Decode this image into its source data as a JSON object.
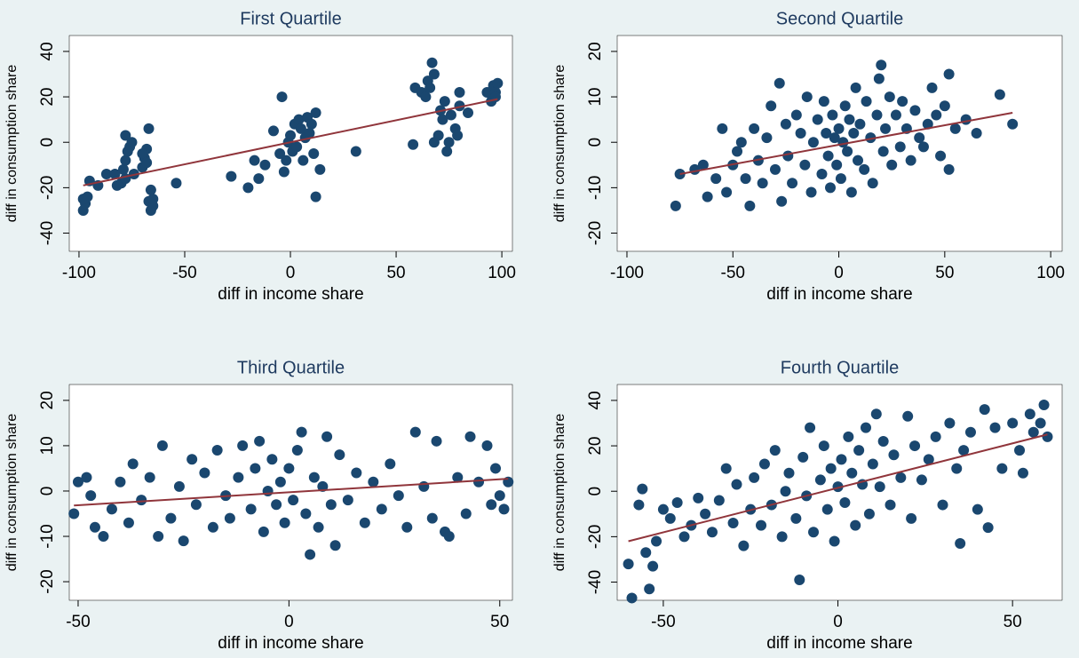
{
  "chart_data": [
    {
      "type": "scatter",
      "title": "First Quartile",
      "x_label": "diff in income share",
      "y_label": "diff in consumption share",
      "xlim": [
        -104.6,
        105
      ],
      "ylim": [
        -48,
        47
      ],
      "xticks": [
        -100,
        -50,
        0,
        50,
        100
      ],
      "yticks": [
        -40,
        -20,
        0,
        20,
        40
      ],
      "points": {
        "color": "#1a476f",
        "x": [
          -98,
          -97,
          -96,
          -98,
          -95,
          -91,
          -87,
          -83,
          -80,
          -78,
          -79,
          -78,
          -77,
          -76,
          -78,
          -75,
          -74,
          -82,
          -70,
          -69,
          -68,
          -70,
          -67,
          -68,
          -67,
          -66,
          -65,
          -66,
          -65,
          -54,
          -28,
          -20,
          -17,
          -15,
          -12,
          -8,
          -5,
          -4,
          -3,
          -2,
          -1,
          0,
          1,
          2,
          3,
          4,
          5,
          6,
          7,
          8,
          9,
          10,
          11,
          12,
          12,
          14,
          31,
          58,
          59,
          62,
          64,
          65,
          66,
          67,
          68,
          68,
          70,
          71,
          72,
          73,
          74,
          75,
          76,
          78,
          79,
          80,
          80,
          84,
          93,
          95,
          96,
          97,
          98,
          97
        ],
        "y": [
          -30,
          -27,
          -24,
          -25,
          -17,
          -19,
          -14,
          -14,
          -18,
          -16,
          -12,
          -8,
          -4,
          -2,
          3,
          0,
          -14,
          -19,
          -11,
          -7,
          -3,
          -5,
          6,
          -9,
          -26,
          -30,
          -28,
          -21,
          -25,
          -18,
          -15,
          -20,
          -8,
          -16,
          -10,
          5,
          -5,
          20,
          -13,
          -8,
          0,
          3,
          -4,
          8,
          -2,
          10,
          6,
          -8,
          2,
          11,
          4,
          8,
          -5,
          13,
          -24,
          -12,
          -4,
          -1,
          24,
          22,
          20,
          27,
          24,
          35,
          30,
          0,
          3,
          14,
          10,
          18,
          -4,
          0,
          12,
          6,
          3,
          22,
          16,
          13,
          22,
          18,
          25,
          22,
          26,
          20
        ]
      },
      "fit": {
        "color": "#90353b",
        "x": [
          -98,
          98
        ],
        "y": [
          -19,
          19
        ]
      }
    },
    {
      "type": "scatter",
      "title": "Second Quartile",
      "x_label": "diff in income share",
      "y_label": "diff in consumption share",
      "xlim": [
        -104.6,
        105.4
      ],
      "ylim": [
        -24,
        23.5
      ],
      "xticks": [
        -100,
        -50,
        0,
        50,
        100
      ],
      "yticks": [
        -20,
        -10,
        0,
        10,
        20
      ],
      "points": {
        "color": "#1a476f",
        "x": [
          -77,
          -75,
          -68,
          -64,
          -62,
          -58,
          -55,
          -53,
          -50,
          -48,
          -46,
          -44,
          -42,
          -40,
          -38,
          -36,
          -34,
          -32,
          -30,
          -28,
          -27,
          -25,
          -24,
          -22,
          -20,
          -18,
          -16,
          -15,
          -13,
          -12,
          -10,
          -8,
          -7,
          -6,
          -5,
          -4,
          -3,
          -2,
          -1,
          0,
          1,
          2,
          3,
          4,
          5,
          6,
          7,
          8,
          9,
          10,
          12,
          13,
          15,
          16,
          18,
          19,
          20,
          21,
          22,
          24,
          25,
          27,
          29,
          30,
          32,
          34,
          36,
          38,
          40,
          42,
          44,
          46,
          48,
          50,
          52,
          52,
          55,
          60,
          65,
          76,
          82
        ],
        "y": [
          -14,
          -7,
          -6,
          -5,
          -12,
          -8,
          3,
          -11,
          -5,
          -2,
          0,
          -8,
          -14,
          3,
          -4,
          -9,
          1,
          8,
          -6,
          13,
          -13,
          4,
          -3,
          -9,
          6,
          2,
          -5,
          10,
          -11,
          0,
          5,
          -7,
          9,
          2,
          -3,
          -10,
          6,
          1,
          -5,
          3,
          -8,
          0,
          8,
          -2,
          5,
          -11,
          2,
          12,
          -4,
          4,
          -6,
          9,
          1,
          -9,
          6,
          14,
          17,
          -2,
          3,
          10,
          -5,
          6,
          -1,
          9,
          3,
          -4,
          7,
          1,
          -1,
          4,
          12,
          6,
          -3,
          8,
          15,
          -6,
          3,
          5,
          2,
          10.5,
          4
        ]
      },
      "fit": {
        "color": "#90353b",
        "x": [
          -75,
          82
        ],
        "y": [
          -7,
          6.5
        ]
      }
    },
    {
      "type": "scatter",
      "title": "Third Quartile",
      "x_label": "diff in income share",
      "y_label": "diff in consumption share",
      "xlim": [
        -52.1,
        53
      ],
      "ylim": [
        -24.1,
        23.5
      ],
      "xticks": [
        -50,
        0,
        50
      ],
      "yticks": [
        -20,
        -10,
        0,
        10,
        20
      ],
      "points": {
        "color": "#1a476f",
        "x": [
          -50,
          -51,
          -48,
          -47,
          -46,
          -44,
          -42,
          -40,
          -38,
          -37,
          -35,
          -33,
          -31,
          -30,
          -28,
          -26,
          -25,
          -23,
          -22,
          -20,
          -18,
          -17,
          -15,
          -14,
          -12,
          -11,
          -9,
          -8,
          -7,
          -6,
          -5,
          -4,
          -3,
          -2,
          -1,
          0,
          1,
          2,
          3,
          4,
          5,
          6,
          7,
          8,
          9,
          10,
          11,
          12,
          14,
          16,
          18,
          20,
          22,
          24,
          26,
          28,
          30,
          32,
          34,
          35,
          37,
          38,
          40,
          42,
          43,
          45,
          47,
          48,
          49,
          50,
          51,
          52
        ],
        "y": [
          2,
          -5,
          3,
          -1,
          -8,
          -10,
          -4,
          2,
          -7,
          6,
          -2,
          3,
          -10,
          10,
          -6,
          1,
          -11,
          7,
          -3,
          4,
          -8,
          9,
          -1,
          -6,
          3,
          10,
          -4,
          5,
          11,
          -9,
          0,
          7,
          -3,
          2,
          -7,
          5,
          -2,
          9,
          13,
          -5,
          -14,
          3,
          -8,
          1,
          12,
          -3,
          -12,
          8,
          -2,
          4,
          -7,
          2,
          -4,
          6,
          -1,
          -8,
          13,
          1,
          -6,
          11,
          -9,
          -10,
          3,
          -5,
          12,
          2,
          10,
          -3,
          5,
          -1,
          -4,
          2
        ]
      },
      "fit": {
        "color": "#90353b",
        "x": [
          -51,
          52
        ],
        "y": [
          -3.2,
          2.7
        ]
      }
    },
    {
      "type": "scatter",
      "title": "Fourth Quartile",
      "x_label": "diff in income share",
      "y_label": "diff in consumption share",
      "xlim": [
        -63.2,
        64.2
      ],
      "ylim": [
        -48,
        47
      ],
      "xticks": [
        -50,
        0,
        50
      ],
      "yticks": [
        -40,
        -20,
        0,
        20,
        40
      ],
      "points": {
        "color": "#1a476f",
        "x": [
          -60,
          -59,
          -57,
          -56,
          -55,
          -54,
          -53,
          -52,
          -50,
          -48,
          -46,
          -44,
          -42,
          -40,
          -38,
          -36,
          -34,
          -32,
          -30,
          -29,
          -27,
          -25,
          -24,
          -22,
          -21,
          -19,
          -18,
          -16,
          -15,
          -14,
          -12,
          -11,
          -10,
          -9,
          -8,
          -7,
          -5,
          -4,
          -3,
          -2,
          -1,
          0,
          1,
          2,
          3,
          4,
          5,
          6,
          7,
          8,
          9,
          10,
          11,
          12,
          13,
          15,
          16,
          18,
          20,
          21,
          22,
          24,
          26,
          28,
          30,
          32,
          34,
          35,
          36,
          38,
          40,
          42,
          43,
          45,
          47,
          50,
          52,
          53,
          55,
          56,
          58,
          59,
          60
        ],
        "y": [
          -32,
          -47,
          -6,
          1,
          -27,
          -43,
          -33,
          -22,
          -8,
          -12,
          -5,
          -20,
          -15,
          -3,
          -10,
          -18,
          -4,
          10,
          -14,
          3,
          -24,
          -8,
          6,
          -15,
          12,
          -6,
          18,
          -20,
          0,
          8,
          -12,
          -39,
          15,
          -2,
          28,
          -18,
          5,
          20,
          -8,
          10,
          -22,
          2,
          14,
          -5,
          24,
          8,
          -15,
          18,
          3,
          28,
          -10,
          12,
          34,
          2,
          22,
          -6,
          16,
          6,
          33,
          -12,
          20,
          5,
          14,
          24,
          -6,
          30,
          10,
          -23,
          18,
          26,
          -8,
          36,
          -16,
          28,
          10,
          30,
          18,
          8,
          34,
          26,
          30,
          38,
          24
        ]
      },
      "fit": {
        "color": "#90353b",
        "x": [
          -60,
          60
        ],
        "y": [
          -22,
          25
        ]
      }
    }
  ]
}
